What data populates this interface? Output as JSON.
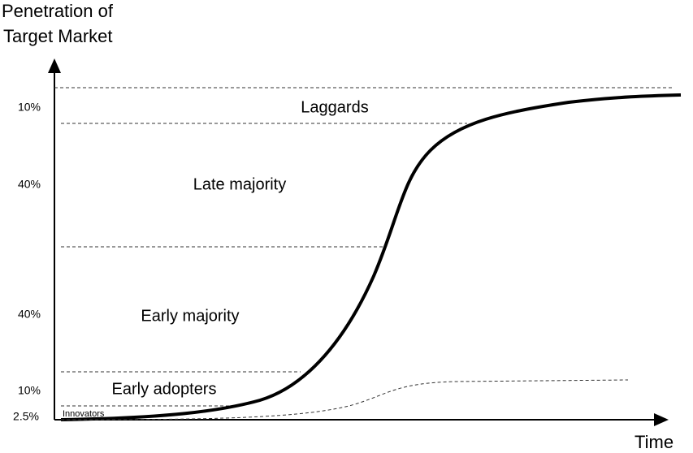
{
  "axis": {
    "y_label": [
      "Penetration of",
      "Target Market"
    ],
    "x_label": "Time"
  },
  "segments": [
    {
      "label": "Laggards",
      "share": "10%"
    },
    {
      "label": "Late majority",
      "share": "40%"
    },
    {
      "label": "Early majority",
      "share": "40%"
    },
    {
      "label": "Early adopters",
      "share": "10%"
    },
    {
      "label": "Innovators",
      "share": "2.5%"
    }
  ]
}
